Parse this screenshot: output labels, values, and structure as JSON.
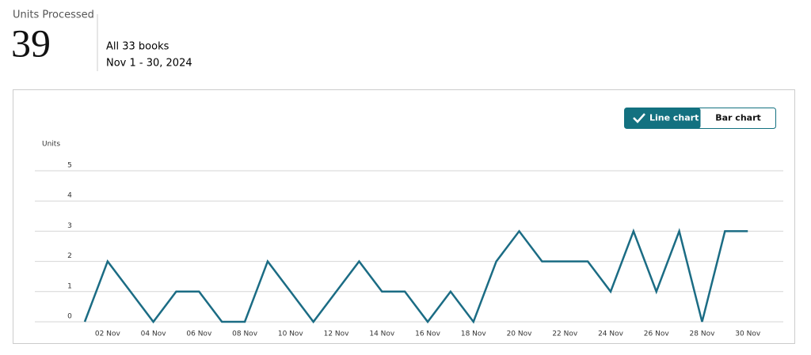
{
  "header": {
    "metric_label": "Units Processed",
    "metric_value": "39",
    "scope": "All 33 books",
    "date_range": "Nov 1 - 30, 2024"
  },
  "toggle": {
    "options": [
      "Line chart",
      "Bar chart"
    ]
  },
  "chart_data": {
    "type": "line",
    "y_label": "Units",
    "categories": [
      null,
      "02 Nov",
      null,
      "04 Nov",
      null,
      "06 Nov",
      null,
      "08 Nov",
      null,
      "10 Nov",
      null,
      "12 Nov",
      null,
      "14 Nov",
      null,
      "16 Nov",
      null,
      "18 Nov",
      null,
      "20 Nov",
      null,
      "22 Nov",
      null,
      "24 Nov",
      null,
      "26 Nov",
      null,
      "28 Nov",
      null,
      "30 Nov"
    ],
    "values": [
      0,
      2,
      1,
      0,
      1,
      1,
      0,
      0,
      2,
      1,
      0,
      1,
      2,
      1,
      1,
      0,
      1,
      0,
      2,
      3,
      2,
      2,
      2,
      1,
      3,
      1,
      3,
      0,
      3,
      3
    ],
    "color": "#1b6c84",
    "ylim": [
      0,
      5
    ],
    "yticks": [
      0,
      1,
      2,
      3,
      4,
      5
    ],
    "grid": true
  }
}
